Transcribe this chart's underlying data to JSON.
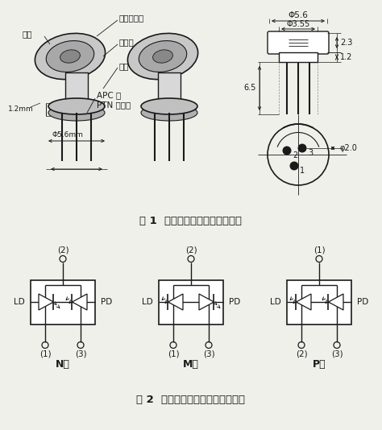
{
  "bg_color": "#f0f0eb",
  "title1": "图 1  激光二极管的外形及其尺寸",
  "title2": "图 2  激光二极管的内部结构示意图",
  "dim_labels": {
    "phi56": "Φ5.6",
    "phi355": "Φ3.55",
    "d23": "2.3",
    "d12": "1.2",
    "d65": "6.5",
    "phi20": "φ2.0"
  },
  "circuit_N": {
    "type": "N型",
    "top": "(2)",
    "bl": "(1)",
    "br": "(3)"
  },
  "circuit_M": {
    "type": "M型",
    "top": "(2)",
    "bl": "(1)",
    "br": "(3)"
  },
  "circuit_P": {
    "type": "P型",
    "top": "(1)",
    "bl": "(2)",
    "br": "(3)"
  },
  "labels_left": {
    "guanmao": "管帽",
    "chip": "激光器芯片",
    "heatsink": "散热器",
    "base": "管座",
    "apc": "APC 用",
    "ptn": "PTN 二极管",
    "phi56mm": "Φ5.6mm",
    "dim12": "1.2mm"
  },
  "lc": "#1a1a1a",
  "tc": "#1a1a1a"
}
